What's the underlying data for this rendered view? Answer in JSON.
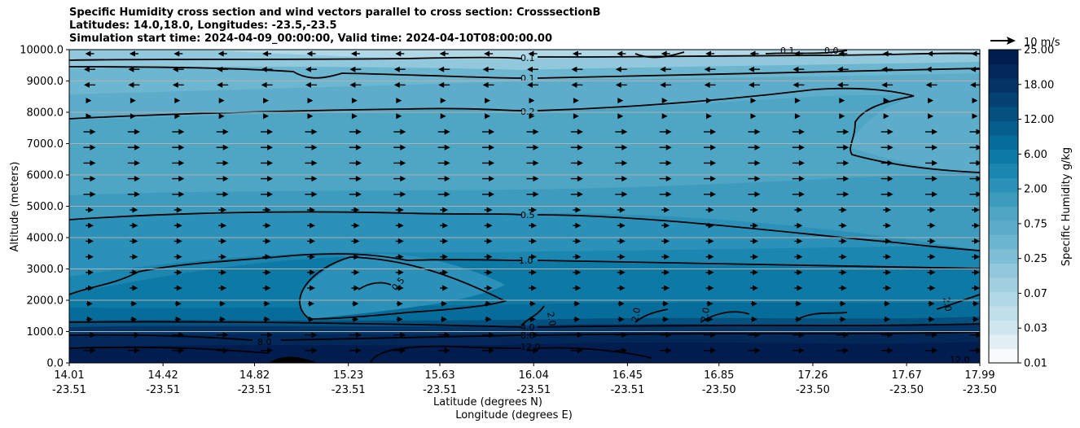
{
  "chart_data": {
    "type": "contour",
    "title_lines": [
      "Specific Humidity cross section and wind vectors parallel to cross section: CrosssectionB",
      "Latitudes: 14.0,18.0, Longitudes: -23.5,-23.5",
      "Simulation start time: 2024-04-09_00:00:00, Valid time: 2024-04-10T08:00:00.00"
    ],
    "xlabel_lat": "Latitude (degrees N)",
    "xlabel_lon": "Longitude (degrees E)",
    "ylabel": "Altitude (meters)",
    "ylim": [
      0,
      10000
    ],
    "yticks": [
      "0.0",
      "1000.0",
      "2000.0",
      "3000.0",
      "4000.0",
      "5000.0",
      "6000.0",
      "7000.0",
      "8000.0",
      "9000.0",
      "10000.0"
    ],
    "xtick_positions": [
      14.01,
      14.42,
      14.82,
      15.23,
      15.63,
      16.04,
      16.45,
      16.85,
      17.26,
      17.67,
      17.99
    ],
    "xticks_lat": [
      "14.01",
      "14.42",
      "14.82",
      "15.23",
      "15.63",
      "16.04",
      "16.45",
      "16.85",
      "17.26",
      "17.67",
      "17.99"
    ],
    "xticks_lon": [
      "-23.51",
      "-23.51",
      "-23.51",
      "-23.51",
      "-23.51",
      "-23.51",
      "-23.51",
      "-23.50",
      "-23.50",
      "-23.50",
      "-23.50"
    ],
    "xlim": [
      14.01,
      17.99
    ],
    "colorbar": {
      "label": "Specific Humidity g/kg",
      "levels": [
        0.01,
        0.02,
        0.03,
        0.05,
        0.07,
        0.1,
        0.15,
        0.25,
        0.35,
        0.5,
        0.75,
        1.0,
        1.5,
        2.0,
        3.0,
        4.0,
        6.0,
        8.0,
        12.0,
        15.0,
        18.0,
        21.0,
        25.0
      ],
      "tick_labels": [
        "0.01",
        "0.03",
        "0.07",
        "0.25",
        "0.75",
        "2.00",
        "6.00",
        "12.00",
        "18.00",
        "25.00"
      ],
      "colors": [
        "#f7fbfc",
        "#e2eff3",
        "#cfe6ee",
        "#bfdfea",
        "#b0d8e6",
        "#a2d0e1",
        "#91c8dc",
        "#7fbfd6",
        "#6db6d0",
        "#5dadca",
        "#4fa5c4",
        "#3d9cbe",
        "#2c91b8",
        "#1b86b0",
        "#0d7aa6",
        "#066c9a",
        "#055e8d",
        "#04507f",
        "#034272",
        "#023466",
        "#02285a",
        "#011c4e"
      ]
    },
    "contour_labels": [
      "0.1",
      "0.1",
      "0.2",
      "0.5",
      "1.0",
      "4.0",
      "8.0",
      "12.0",
      "0.5",
      "8.0",
      "2.0",
      "2.0",
      "2.0",
      "2.0",
      "12.0",
      "0.1",
      "0.0"
    ],
    "wind_legend": "10 m/s",
    "wind_direction": "left above ~8500 m, right below"
  }
}
